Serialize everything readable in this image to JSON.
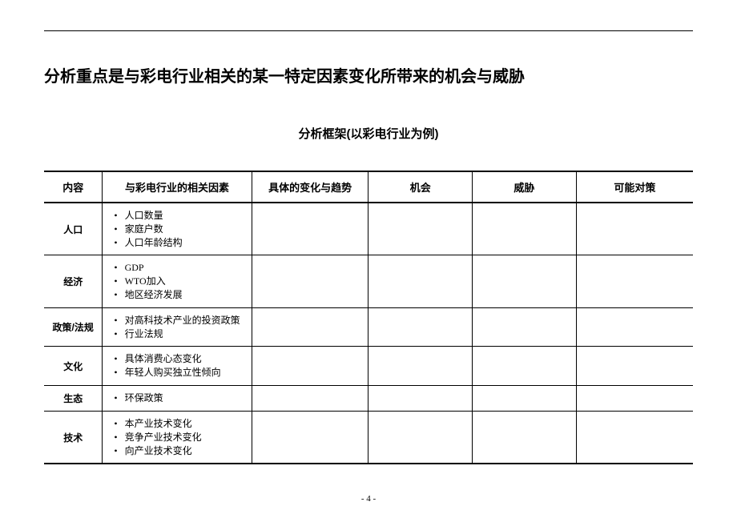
{
  "title": "分析重点是与彩电行业相关的某一特定因素变化所带来的机会与威胁",
  "subtitle": "分析框架(以彩电行业为例)",
  "columns": {
    "content": "内容",
    "factors": "与彩电行业的相关因素",
    "change": "具体的变化与趋势",
    "opp": "机会",
    "threat": "威胁",
    "counter": "可能对策"
  },
  "rows": [
    {
      "label": "人口",
      "factors": [
        "人口数量",
        "家庭户数",
        "人口年龄结构"
      ]
    },
    {
      "label": "经济",
      "factors": [
        "GDP",
        "WTO加入",
        "地区经济发展"
      ]
    },
    {
      "label": "政策/法规",
      "factors": [
        "对高科技术产业的投资政策",
        "行业法规"
      ]
    },
    {
      "label": "文化",
      "factors": [
        "具体消费心态变化",
        "年轻人购买独立性倾向"
      ]
    },
    {
      "label": "生态",
      "factors": [
        "环保政策"
      ]
    },
    {
      "label": "技术",
      "factors": [
        "本产业技术变化",
        "竞争产业技术变化",
        "向产业技术变化"
      ]
    }
  ],
  "page_number": "- 4 -",
  "style": {
    "background_color": "#ffffff",
    "text_color": "#000000",
    "border_heavy": "2.5px solid #000",
    "border_light": "1px solid #000",
    "title_fontsize": 20,
    "subtitle_fontsize": 15,
    "header_fontsize": 13,
    "cell_fontsize": 12
  }
}
